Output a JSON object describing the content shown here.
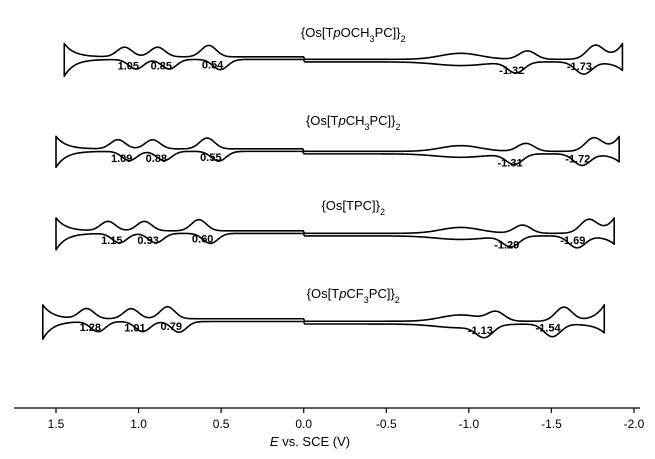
{
  "chart_data": {
    "type": "line",
    "xlabel_var": "E",
    "xlabel_rest": " vs. SCE (V)",
    "x_ticks": [
      "1.5",
      "1.0",
      "0.5",
      "0.0",
      "-0.5",
      "-1.0",
      "-1.5",
      "-2.0"
    ],
    "x_tick_values": [
      1.5,
      1.0,
      0.5,
      0.0,
      -0.5,
      -1.0,
      -1.5,
      -2.0
    ],
    "xlim": [
      1.63,
      -2.08
    ],
    "grid": false,
    "legend": "none",
    "series": [
      {
        "title_parts": [
          {
            "t": "{Os[T",
            "s": "n"
          },
          {
            "t": "p",
            "s": "i"
          },
          {
            "t": "OCH",
            "s": "n"
          },
          {
            "t": "3",
            "s": "sub"
          },
          {
            "t": "PC]}",
            "s": "n"
          },
          {
            "t": "2",
            "s": "sub"
          }
        ],
        "range": [
          1.45,
          -1.93
        ],
        "baseline": 0.0,
        "ox_peaks": [
          {
            "label": "1.05",
            "E": 1.05
          },
          {
            "label": "0.85",
            "E": 0.85
          },
          {
            "label": "0.54",
            "E": 0.54
          }
        ],
        "red_peaks": [
          {
            "label": "-1.32",
            "E": -1.32
          },
          {
            "label": "-1.73",
            "E": -1.73
          }
        ]
      },
      {
        "title_parts": [
          {
            "t": "{Os[T",
            "s": "n"
          },
          {
            "t": "p",
            "s": "i"
          },
          {
            "t": "CH",
            "s": "n"
          },
          {
            "t": "3",
            "s": "sub"
          },
          {
            "t": "PC]}",
            "s": "n"
          },
          {
            "t": "2",
            "s": "sub"
          }
        ],
        "range": [
          1.5,
          -1.91
        ],
        "baseline": 0.0,
        "ox_peaks": [
          {
            "label": "1.09",
            "E": 1.09
          },
          {
            "label": "0.88",
            "E": 0.88
          },
          {
            "label": "0.55",
            "E": 0.55
          }
        ],
        "red_peaks": [
          {
            "label": "-1.31",
            "E": -1.31
          },
          {
            "label": "-1.72",
            "E": -1.72
          }
        ]
      },
      {
        "title_parts": [
          {
            "t": "{Os[TPC]}",
            "s": "n"
          },
          {
            "t": "2",
            "s": "sub"
          }
        ],
        "range": [
          1.5,
          -1.88
        ],
        "baseline": 0.0,
        "ox_peaks": [
          {
            "label": "1.15",
            "E": 1.15
          },
          {
            "label": "0.93",
            "E": 0.93
          },
          {
            "label": "0.60",
            "E": 0.6
          }
        ],
        "red_peaks": [
          {
            "label": "-1.29",
            "E": -1.29
          },
          {
            "label": "-1.69",
            "E": -1.69
          }
        ]
      },
      {
        "title_parts": [
          {
            "t": "{Os[T",
            "s": "n"
          },
          {
            "t": "p",
            "s": "i"
          },
          {
            "t": "CF",
            "s": "n"
          },
          {
            "t": "3",
            "s": "sub"
          },
          {
            "t": "PC]}",
            "s": "n"
          },
          {
            "t": "2",
            "s": "sub"
          }
        ],
        "range": [
          1.58,
          -1.82
        ],
        "baseline": 0.0,
        "ox_peaks": [
          {
            "label": "1.28",
            "E": 1.28
          },
          {
            "label": "1.01",
            "E": 1.01
          },
          {
            "label": "0.79",
            "E": 0.79
          }
        ],
        "red_peaks": [
          {
            "label": "-1.13",
            "E": -1.13
          },
          {
            "label": "-1.54",
            "E": -1.54
          }
        ]
      }
    ]
  }
}
